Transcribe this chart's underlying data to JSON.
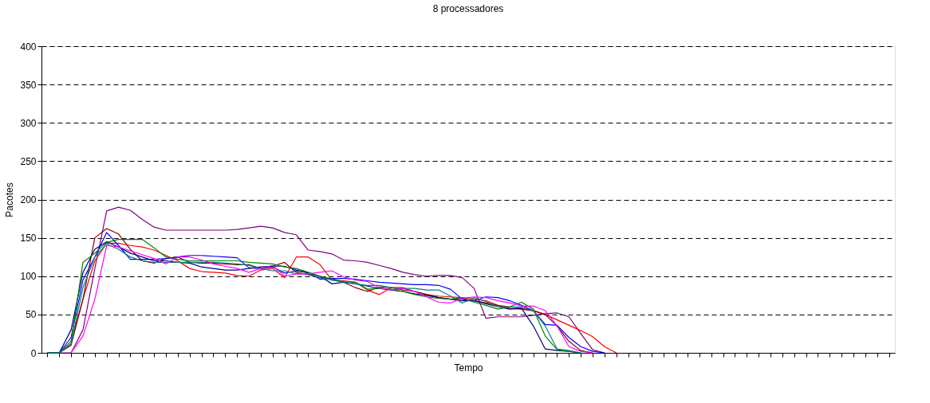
{
  "chart_data": {
    "type": "line",
    "title": "8 processadores",
    "xlabel": "Tempo",
    "ylabel": "Pacotes",
    "categories": [
      null,
      null,
      null,
      null,
      null,
      null,
      null,
      null,
      null,
      null,
      null,
      null,
      null,
      null,
      null,
      null,
      null,
      null,
      null,
      null,
      null,
      null,
      null,
      null,
      null,
      null,
      null,
      null,
      null,
      null,
      null,
      null,
      null,
      null,
      null,
      null,
      null,
      null,
      null,
      null,
      null,
      null,
      null,
      null,
      null,
      null,
      null,
      null,
      null,
      null,
      null,
      null,
      null,
      null,
      null,
      null,
      null,
      null,
      null,
      null,
      null,
      null,
      null,
      null,
      null,
      null,
      null,
      null,
      null,
      null,
      null,
      null
    ],
    "ylim": [
      0,
      400
    ],
    "yticks": [
      0,
      50,
      100,
      150,
      200,
      250,
      300,
      350,
      400
    ],
    "grid": "y",
    "legend": false,
    "tick_labels": "y",
    "marker": "none",
    "line_style": "solid",
    "series": [
      {
        "color": "#800080",
        "values": [
          0,
          0,
          0,
          30,
          110,
          185,
          190,
          186,
          174,
          164,
          160,
          160,
          160,
          160,
          160,
          160,
          161,
          163,
          165,
          163,
          157,
          154,
          134,
          132,
          129,
          121,
          120,
          118,
          114,
          110,
          105,
          102,
          100,
          101,
          101,
          98,
          84,
          45,
          47,
          47,
          47,
          49,
          51,
          52,
          47,
          25,
          4,
          0,
          null,
          null,
          null,
          null,
          null,
          null,
          null,
          null,
          null,
          null,
          null,
          null,
          null,
          null,
          null,
          null,
          null,
          null,
          null,
          null,
          null,
          null,
          null,
          null
        ]
      },
      {
        "color": "#ff0000",
        "values": [
          null,
          null,
          15,
          70,
          120,
          143,
          143,
          140,
          138,
          134,
          127,
          120,
          110,
          106,
          105,
          104,
          101,
          100,
          108,
          110,
          98,
          125,
          125,
          115,
          95,
          94,
          92,
          82,
          76,
          85,
          85,
          80,
          76,
          74,
          73,
          72,
          70,
          68,
          62,
          60,
          58,
          55,
          50,
          43,
          36,
          29,
          21,
          8,
          0,
          null,
          null,
          null,
          null,
          null,
          null,
          null,
          null,
          null,
          null,
          null,
          null,
          null,
          null,
          null,
          null,
          null,
          null,
          null,
          null,
          null,
          null,
          null
        ]
      },
      {
        "color": "#800000",
        "values": [
          0,
          0,
          10,
          70,
          150,
          162,
          155,
          135,
          120,
          117,
          123,
          125,
          118,
          117,
          117,
          116,
          115,
          115,
          110,
          113,
          118,
          105,
          102,
          98,
          97,
          92,
          85,
          80,
          86,
          85,
          82,
          80,
          76,
          72,
          70,
          70,
          68,
          65,
          62,
          58,
          57,
          55,
          50,
          35,
          15,
          3,
          0,
          null,
          null,
          null,
          null,
          null,
          null,
          null,
          null,
          null,
          null,
          null,
          null,
          null,
          null,
          null,
          null,
          null,
          null,
          null,
          null,
          null,
          null,
          null,
          null,
          null
        ]
      },
      {
        "color": "#0000ff",
        "values": [
          0,
          0,
          20,
          95,
          125,
          157,
          140,
          122,
          122,
          122,
          123,
          125,
          127,
          127,
          126,
          125,
          124,
          111,
          110,
          112,
          104,
          107,
          105,
          96,
          97,
          97,
          96,
          94,
          92,
          91,
          90,
          89,
          89,
          88,
          83,
          70,
          68,
          73,
          72,
          68,
          62,
          55,
          37,
          36,
          20,
          8,
          2,
          0,
          null,
          null,
          null,
          null,
          null,
          null,
          null,
          null,
          null,
          null,
          null,
          null,
          null,
          null,
          null,
          null,
          null,
          null,
          null,
          null,
          null,
          null,
          null,
          null
        ]
      },
      {
        "color": "#000080",
        "values": [
          0,
          0,
          30,
          105,
          135,
          145,
          138,
          130,
          125,
          120,
          120,
          118,
          117,
          112,
          110,
          108,
          108,
          110,
          112,
          113,
          113,
          108,
          104,
          100,
          90,
          92,
          90,
          87,
          84,
          82,
          80,
          77,
          75,
          72,
          70,
          68,
          68,
          64,
          60,
          57,
          58,
          35,
          5,
          3,
          2,
          0,
          null,
          null,
          null,
          null,
          null,
          null,
          null,
          null,
          null,
          null,
          null,
          null,
          null,
          null,
          null,
          null,
          null,
          null,
          null,
          null,
          null,
          null,
          null,
          null,
          null,
          null
        ]
      },
      {
        "color": "#008000",
        "values": [
          0,
          0,
          15,
          118,
          130,
          144,
          148,
          148,
          148,
          137,
          125,
          122,
          120,
          120,
          120,
          120,
          120,
          118,
          117,
          116,
          112,
          110,
          105,
          100,
          96,
          93,
          92,
          83,
          84,
          83,
          80,
          76,
          73,
          71,
          70,
          72,
          66,
          62,
          57,
          60,
          66,
          57,
          22,
          4,
          2,
          0,
          null,
          null,
          null,
          null,
          null,
          null,
          null,
          null,
          null,
          null,
          null,
          null,
          null,
          null,
          null,
          null,
          null,
          null,
          null,
          null,
          null,
          null,
          null,
          null,
          null,
          null
        ]
      },
      {
        "color": "#008080",
        "values": [
          0,
          0,
          12,
          85,
          125,
          142,
          135,
          125,
          120,
          118,
          118,
          118,
          118,
          118,
          118,
          117,
          116,
          114,
          110,
          107,
          107,
          103,
          103,
          98,
          95,
          92,
          90,
          88,
          88,
          85,
          84,
          84,
          82,
          82,
          74,
          65,
          72,
          67,
          60,
          60,
          60,
          55,
          35,
          5,
          3,
          0,
          null,
          null,
          null,
          null,
          null,
          null,
          null,
          null,
          null,
          null,
          null,
          null,
          null,
          null,
          null,
          null,
          null,
          null,
          null,
          null,
          null,
          null,
          null,
          null,
          null,
          null
        ]
      },
      {
        "color": "#ff00ff",
        "values": [
          null,
          null,
          0,
          22,
          70,
          140,
          138,
          133,
          128,
          123,
          116,
          125,
          125,
          121,
          116,
          113,
          110,
          105,
          110,
          114,
          100,
          103,
          103,
          105,
          107,
          99,
          95,
          93,
          85,
          82,
          84,
          80,
          73,
          66,
          65,
          71,
          73,
          72,
          68,
          65,
          61,
          61,
          55,
          35,
          8,
          2,
          0,
          null,
          null,
          null,
          null,
          null,
          null,
          null,
          null,
          null,
          null,
          null,
          null,
          null,
          null,
          null,
          null,
          null,
          null,
          null,
          null,
          null,
          null,
          null,
          null,
          null
        ]
      }
    ]
  }
}
